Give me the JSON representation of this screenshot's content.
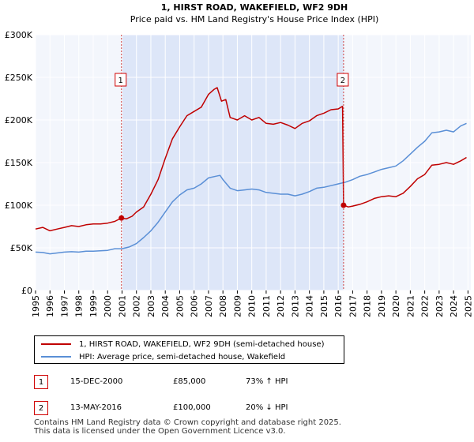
{
  "chart_data": {
    "type": "line",
    "title": "1, HIRST ROAD, WAKEFIELD, WF2 9DH",
    "subtitle": "Price paid vs. HM Land Registry's House Price Index (HPI)",
    "xlim": [
      1995,
      2025.2
    ],
    "ylim": [
      0,
      300000
    ],
    "x_ticks": [
      "1995",
      "1996",
      "1997",
      "1998",
      "1999",
      "2000",
      "2001",
      "2002",
      "2003",
      "2004",
      "2005",
      "2006",
      "2007",
      "2008",
      "2009",
      "2010",
      "2011",
      "2012",
      "2013",
      "2014",
      "2015",
      "2016",
      "2017",
      "2018",
      "2019",
      "2020",
      "2021",
      "2022",
      "2023",
      "2024",
      "2025"
    ],
    "y_ticks": [
      {
        "value": 0,
        "label": "£0"
      },
      {
        "value": 50000,
        "label": "£50K"
      },
      {
        "value": 100000,
        "label": "£100K"
      },
      {
        "value": 150000,
        "label": "£150K"
      },
      {
        "value": 200000,
        "label": "£200K"
      },
      {
        "value": 250000,
        "label": "£250K"
      },
      {
        "value": 300000,
        "label": "£300K"
      }
    ],
    "grid": true,
    "shaded_region": {
      "from": 2000.96,
      "to": 2016.37,
      "color": "#dde6f8"
    },
    "series": [
      {
        "name": "1, HIRST ROAD, WAKEFIELD, WF2 9DH (semi-detached house)",
        "color": "#c00000",
        "points": [
          [
            1995,
            72000
          ],
          [
            1995.5,
            74000
          ],
          [
            1996,
            70000
          ],
          [
            1996.5,
            72000
          ],
          [
            1997,
            74000
          ],
          [
            1997.5,
            76000
          ],
          [
            1998,
            75000
          ],
          [
            1998.5,
            77000
          ],
          [
            1999,
            78000
          ],
          [
            1999.5,
            78000
          ],
          [
            2000,
            79000
          ],
          [
            2000.5,
            81000
          ],
          [
            2000.96,
            85000
          ],
          [
            2001.3,
            84000
          ],
          [
            2001.7,
            87000
          ],
          [
            2002,
            92000
          ],
          [
            2002.5,
            98000
          ],
          [
            2003,
            113000
          ],
          [
            2003.5,
            130000
          ],
          [
            2004,
            155000
          ],
          [
            2004.5,
            178000
          ],
          [
            2005,
            192000
          ],
          [
            2005.5,
            205000
          ],
          [
            2006,
            210000
          ],
          [
            2006.5,
            215000
          ],
          [
            2007,
            230000
          ],
          [
            2007.4,
            236000
          ],
          [
            2007.6,
            238000
          ],
          [
            2007.9,
            222000
          ],
          [
            2008.2,
            224000
          ],
          [
            2008.5,
            203000
          ],
          [
            2009,
            200000
          ],
          [
            2009.5,
            205000
          ],
          [
            2010,
            200000
          ],
          [
            2010.5,
            203000
          ],
          [
            2011,
            196000
          ],
          [
            2011.5,
            195000
          ],
          [
            2012,
            197000
          ],
          [
            2012.5,
            194000
          ],
          [
            2013,
            190000
          ],
          [
            2013.5,
            196000
          ],
          [
            2014,
            199000
          ],
          [
            2014.5,
            205000
          ],
          [
            2015,
            208000
          ],
          [
            2015.5,
            212000
          ],
          [
            2016,
            213000
          ],
          [
            2016.3,
            216000
          ],
          [
            2016.37,
            100000
          ],
          [
            2016.7,
            98000
          ],
          [
            2017,
            99000
          ],
          [
            2017.5,
            101000
          ],
          [
            2018,
            104000
          ],
          [
            2018.5,
            108000
          ],
          [
            2019,
            110000
          ],
          [
            2019.5,
            111000
          ],
          [
            2020,
            110000
          ],
          [
            2020.5,
            114000
          ],
          [
            2021,
            122000
          ],
          [
            2021.5,
            131000
          ],
          [
            2022,
            136000
          ],
          [
            2022.5,
            147000
          ],
          [
            2023,
            148000
          ],
          [
            2023.5,
            150000
          ],
          [
            2024,
            148000
          ],
          [
            2024.5,
            152000
          ],
          [
            2024.9,
            156000
          ]
        ]
      },
      {
        "name": "HPI: Average price, semi-detached house, Wakefield",
        "color": "#5a8fd6",
        "points": [
          [
            1995,
            45000
          ],
          [
            1995.5,
            44500
          ],
          [
            1996,
            43000
          ],
          [
            1996.5,
            44000
          ],
          [
            1997,
            45000
          ],
          [
            1997.5,
            45500
          ],
          [
            1998,
            45000
          ],
          [
            1998.5,
            46000
          ],
          [
            1999,
            46000
          ],
          [
            1999.5,
            46500
          ],
          [
            2000,
            47000
          ],
          [
            2000.5,
            49000
          ],
          [
            2001,
            49000
          ],
          [
            2001.5,
            51000
          ],
          [
            2002,
            55000
          ],
          [
            2002.5,
            62000
          ],
          [
            2003,
            70000
          ],
          [
            2003.5,
            80000
          ],
          [
            2004,
            92000
          ],
          [
            2004.5,
            104000
          ],
          [
            2005,
            112000
          ],
          [
            2005.5,
            118000
          ],
          [
            2006,
            120000
          ],
          [
            2006.5,
            125000
          ],
          [
            2007,
            132000
          ],
          [
            2007.5,
            134000
          ],
          [
            2007.8,
            135000
          ],
          [
            2008,
            130000
          ],
          [
            2008.5,
            120000
          ],
          [
            2009,
            117000
          ],
          [
            2009.5,
            118000
          ],
          [
            2010,
            119000
          ],
          [
            2010.5,
            118000
          ],
          [
            2011,
            115000
          ],
          [
            2011.5,
            114000
          ],
          [
            2012,
            113000
          ],
          [
            2012.5,
            113000
          ],
          [
            2013,
            111000
          ],
          [
            2013.5,
            113000
          ],
          [
            2014,
            116000
          ],
          [
            2014.5,
            120000
          ],
          [
            2015,
            121000
          ],
          [
            2015.5,
            123000
          ],
          [
            2016,
            125000
          ],
          [
            2016.5,
            127000
          ],
          [
            2017,
            130000
          ],
          [
            2017.5,
            134000
          ],
          [
            2018,
            136000
          ],
          [
            2018.5,
            139000
          ],
          [
            2019,
            142000
          ],
          [
            2019.5,
            144000
          ],
          [
            2020,
            146000
          ],
          [
            2020.5,
            152000
          ],
          [
            2021,
            160000
          ],
          [
            2021.5,
            168000
          ],
          [
            2022,
            175000
          ],
          [
            2022.5,
            185000
          ],
          [
            2023,
            186000
          ],
          [
            2023.5,
            188000
          ],
          [
            2024,
            186000
          ],
          [
            2024.5,
            193000
          ],
          [
            2024.9,
            196000
          ]
        ]
      }
    ],
    "markers": [
      {
        "label": "1",
        "x": 2000.96,
        "y": 85000
      },
      {
        "label": "2",
        "x": 2016.37,
        "y": 100000
      }
    ]
  },
  "legend": {
    "entries": [
      {
        "label": "1, HIRST ROAD, WAKEFIELD, WF2 9DH (semi-detached house)",
        "color": "#c00000"
      },
      {
        "label": "HPI: Average price, semi-detached house, Wakefield",
        "color": "#5a8fd6"
      }
    ]
  },
  "transactions": [
    {
      "num": "1",
      "date": "15-DEC-2000",
      "price": "£85,000",
      "hpi": "73% ↑ HPI"
    },
    {
      "num": "2",
      "date": "13-MAY-2016",
      "price": "£100,000",
      "hpi": "20% ↓ HPI"
    }
  ],
  "footer": {
    "line1": "Contains HM Land Registry data © Crown copyright and database right 2025.",
    "line2": "This data is licensed under the Open Government Licence v3.0."
  }
}
